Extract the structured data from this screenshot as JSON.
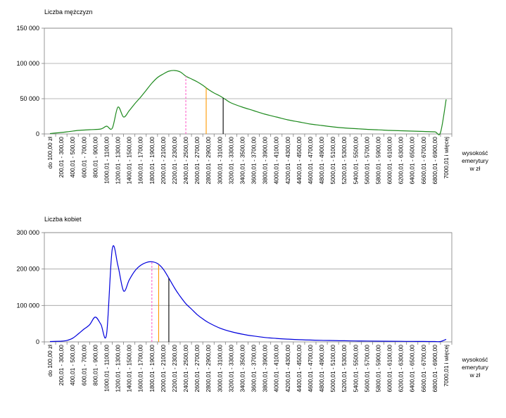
{
  "chart_data": [
    {
      "type": "line",
      "title": "",
      "ylabel": "Liczba mężczyzn",
      "xlabel_lines": [
        "wysokość",
        "emerytury",
        "w zł"
      ],
      "ylim": [
        0,
        150000
      ],
      "yticks": [
        0,
        50000,
        100000,
        150000
      ],
      "ytick_labels": [
        "0",
        "50 000",
        "100 000",
        "150 000"
      ],
      "grid": true,
      "legend": "none",
      "series_color": "#1e8a1e",
      "categories": [
        "do 100,00 zł",
        "200,01 - 300,00",
        "400,01 - 500,00",
        "600,01 - 700,00",
        "800,01 - 900,00",
        "1000,01 - 1100,00",
        "1200,01 - 1300,00",
        "1400,01 - 1500,00",
        "1600,01 - 1700,00",
        "1800,01 - 1900,00",
        "2000,01 - 2100,00",
        "2200,01 - 2300,00",
        "2400,01 - 2500,00",
        "2600,01 - 2700,00",
        "2800,01 - 2900,00",
        "3000,01 - 3100,00",
        "3200,01 - 3300,00",
        "3400,01 - 3500,00",
        "3600,01 - 3700,00",
        "3800,01 - 3900,00",
        "4000,01 - 4100,00",
        "4200,01 - 4300,00",
        "4400,01 - 4500,00",
        "4600,01 - 4700,00",
        "4800,01 - 4900,00",
        "5000,01 - 5100,00",
        "5200,01 - 5300,00",
        "5400,01 - 5500,00",
        "5600,01 - 5700,00",
        "5800,01 - 5900,00",
        "6000,01 - 6100,00",
        "6200,01 - 6300,00",
        "6400,01 - 6500,00",
        "6600,01 - 6700,00",
        "6800,01 - 6900,00",
        "7000,01 i więcej"
      ],
      "x": [
        0,
        1.5,
        2.5,
        3.5,
        4.5,
        5,
        5.5,
        6,
        6.5,
        7,
        7.5,
        8,
        8.5,
        9,
        9.5,
        10,
        10.5,
        11,
        11.5,
        12,
        12.5,
        13,
        13.5,
        14,
        14.5,
        15,
        15.5,
        16,
        17,
        18,
        19,
        20,
        21,
        22,
        23,
        24,
        25,
        26,
        27,
        28,
        29,
        30,
        31,
        32,
        33,
        34,
        34.5,
        35
      ],
      "values": [
        500,
        3000,
        5000,
        6000,
        7000,
        11000,
        8000,
        38000,
        24000,
        33000,
        43000,
        52000,
        62000,
        72000,
        80000,
        85000,
        89000,
        90000,
        88000,
        82000,
        78000,
        74000,
        69000,
        63000,
        58000,
        54000,
        49000,
        44000,
        38000,
        33000,
        28000,
        24000,
        20000,
        17000,
        14000,
        12000,
        10000,
        8500,
        7500,
        6500,
        5800,
        5000,
        4500,
        4000,
        3500,
        3000,
        2000,
        49000
      ],
      "markers": [
        {
          "x": 12.0,
          "color": "#ff66cc",
          "dashed": true
        },
        {
          "x": 13.8,
          "color": "#ff9900",
          "dashed": false
        },
        {
          "x": 15.3,
          "color": "#000000",
          "dashed": false
        }
      ]
    },
    {
      "type": "line",
      "title": "",
      "ylabel": "Liczba kobiet",
      "xlabel_lines": [
        "wysokość",
        "emerytury",
        "w zł"
      ],
      "ylim": [
        0,
        300000
      ],
      "yticks": [
        0,
        100000,
        200000,
        300000
      ],
      "ytick_labels": [
        "0",
        "100 000",
        "200 000",
        "300 000"
      ],
      "grid": true,
      "legend": "none",
      "series_color": "#0000dd",
      "categories": [
        "do 100,00 zł",
        "200,01 - 300,00",
        "400,01 - 500,00",
        "600,01 - 700,00",
        "800,01 - 900,00",
        "1000,01 - 1100,00",
        "1200,01 - 1300,00",
        "1400,01 - 1500,00",
        "1600,01 - 1700,00",
        "1800,01 - 1900,00",
        "2000,01 - 2100,00",
        "2200,01 - 2300,00",
        "2400,01 - 2500,00",
        "2600,01 - 2700,00",
        "2800,01 - 2900,00",
        "3000,01 - 3100,00",
        "3200,01 - 3300,00",
        "3400,01 - 3500,00",
        "3600,01 - 3700,00",
        "3800,01 - 3900,00",
        "4000,01 - 4100,00",
        "4200,01 - 4300,00",
        "4400,01 - 4500,00",
        "4600,01 - 4700,00",
        "4800,01 - 4900,00",
        "5000,01 - 5100,00",
        "5200,01 - 5300,00",
        "5400,01 - 5500,00",
        "5600,01 - 5700,00",
        "5800,01 - 5900,00",
        "6000,01 - 6100,00",
        "6200,01 - 6300,00",
        "6400,01 - 6500,00",
        "6600,01 - 6700,00",
        "6800,01 - 6900,00",
        "7000,01 i więcej"
      ],
      "x": [
        0,
        1,
        1.5,
        2,
        2.5,
        3,
        3.5,
        4,
        4.5,
        5,
        5.5,
        6,
        6.5,
        7,
        7.5,
        8,
        8.5,
        9,
        9.5,
        10,
        10.5,
        11,
        11.5,
        12,
        12.5,
        13,
        13.5,
        14,
        15,
        16,
        17,
        18,
        19,
        20,
        21,
        22,
        23,
        24,
        25,
        26,
        27,
        28,
        29,
        30,
        31,
        32,
        33,
        34,
        34.5,
        35
      ],
      "values": [
        1000,
        2000,
        4000,
        10000,
        22000,
        35000,
        47000,
        68000,
        48000,
        22000,
        255000,
        210000,
        140000,
        170000,
        195000,
        210000,
        218000,
        220000,
        215000,
        200000,
        175000,
        148000,
        125000,
        105000,
        90000,
        75000,
        63000,
        53000,
        38000,
        28000,
        21000,
        16000,
        12000,
        9500,
        7500,
        6000,
        5000,
        4200,
        3600,
        3000,
        2600,
        2300,
        2000,
        1800,
        1500,
        1300,
        1100,
        1000,
        900,
        7000
      ],
      "markers": [
        {
          "x": 9.0,
          "color": "#ff66cc",
          "dashed": true
        },
        {
          "x": 9.6,
          "color": "#ff9900",
          "dashed": false
        },
        {
          "x": 10.5,
          "color": "#000000",
          "dashed": false
        }
      ]
    }
  ]
}
